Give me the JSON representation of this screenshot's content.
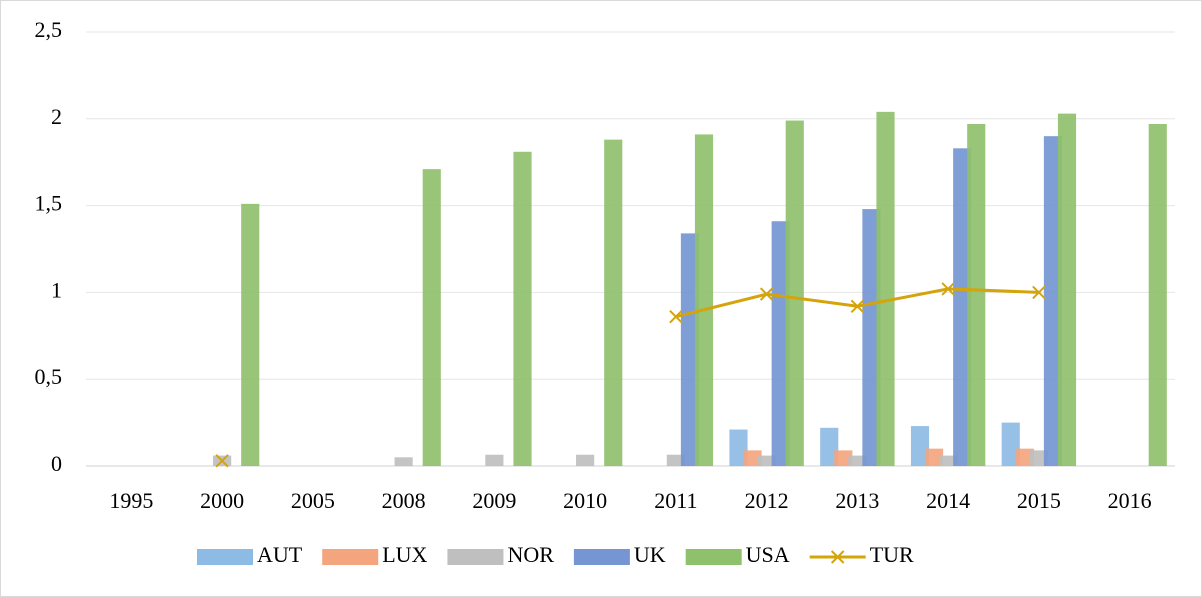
{
  "chart_data": {
    "type": "bar",
    "categories": [
      "1995",
      "2000",
      "2005",
      "2008",
      "2009",
      "2010",
      "2011",
      "2012",
      "2013",
      "2014",
      "2015",
      "2016"
    ],
    "series": [
      {
        "name": "AUT",
        "color": "#8dbbe3",
        "values": [
          null,
          null,
          null,
          null,
          null,
          null,
          null,
          0.21,
          0.22,
          0.23,
          0.25,
          null
        ]
      },
      {
        "name": "LUX",
        "color": "#f4a57e",
        "values": [
          null,
          null,
          null,
          null,
          null,
          null,
          null,
          0.09,
          0.09,
          0.1,
          0.1,
          null
        ]
      },
      {
        "name": "NOR",
        "color": "#bfbfbf",
        "values": [
          null,
          0.06,
          null,
          0.05,
          0.065,
          0.065,
          0.065,
          0.06,
          0.06,
          0.06,
          0.09,
          null
        ]
      },
      {
        "name": "UK",
        "color": "#7596d2",
        "values": [
          null,
          null,
          null,
          null,
          null,
          null,
          1.34,
          1.41,
          1.48,
          1.83,
          1.9,
          null
        ]
      },
      {
        "name": "USA",
        "color": "#8fc06b",
        "values": [
          null,
          1.51,
          null,
          1.71,
          1.81,
          1.88,
          1.91,
          1.99,
          2.04,
          1.97,
          2.03,
          1.97
        ]
      },
      {
        "name": "TUR",
        "color": "#d4a40a",
        "type": "line",
        "values": [
          null,
          0.03,
          null,
          null,
          null,
          null,
          0.86,
          0.99,
          0.92,
          1.02,
          1.0,
          null
        ]
      }
    ],
    "ylim": [
      0,
      2.5
    ],
    "yticks": [
      0,
      {
        "value": 0.5,
        "label": "0,5"
      },
      1,
      {
        "value": 1.5,
        "label": "1,5"
      },
      2,
      {
        "value": 2.5,
        "label": "2,5"
      }
    ],
    "grid": true,
    "legend": "bottom"
  }
}
